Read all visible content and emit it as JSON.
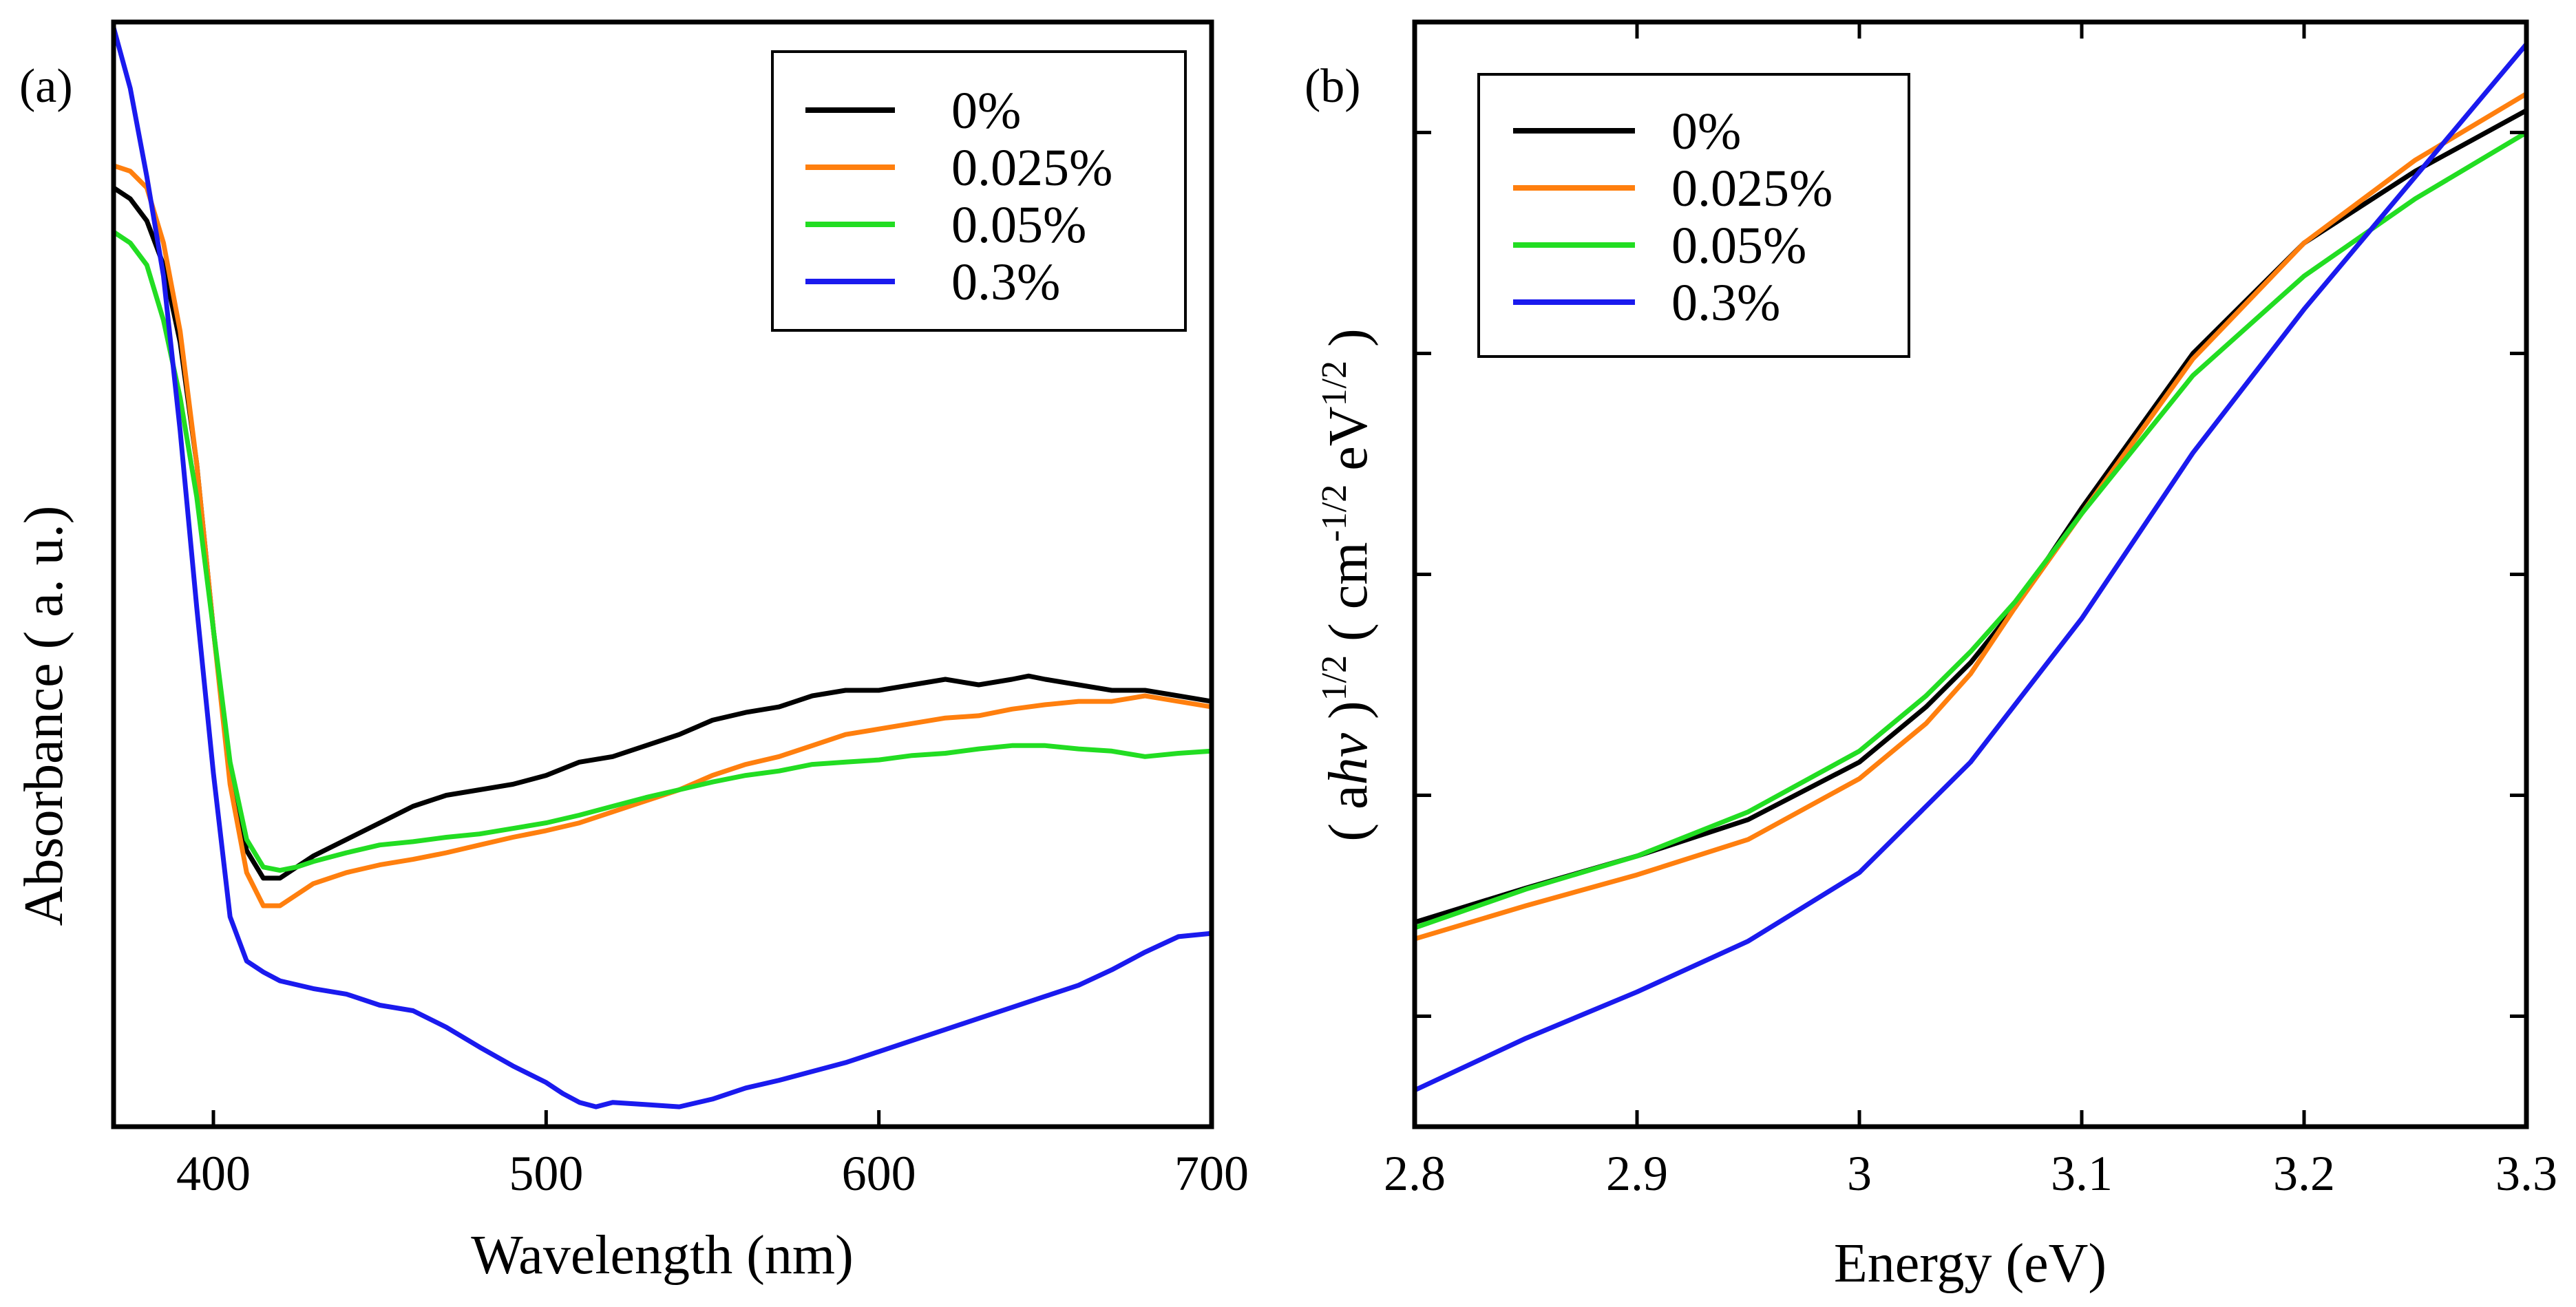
{
  "chart_data": [
    {
      "panel_label": "(a)",
      "type": "line",
      "title": "",
      "xlabel": "Wavelength  (nm)",
      "ylabel": "Absorbance  ( a. u.)",
      "xlim": [
        370,
        700
      ],
      "ylim": [
        0,
        1
      ],
      "x_ticks": [
        400,
        500,
        600,
        700
      ],
      "x_tick_labels": [
        "400",
        "500",
        "600",
        "700"
      ],
      "grid": false,
      "legend_position": "top-right",
      "series": [
        {
          "name": "0%",
          "color": "#000000",
          "x": [
            370,
            375,
            380,
            385,
            390,
            395,
            400,
            405,
            410,
            415,
            420,
            425,
            430,
            440,
            450,
            460,
            470,
            480,
            490,
            500,
            510,
            520,
            530,
            540,
            550,
            560,
            570,
            580,
            590,
            600,
            610,
            620,
            630,
            640,
            645,
            650,
            660,
            670,
            680,
            690,
            700
          ],
          "values": [
            0.85,
            0.84,
            0.82,
            0.78,
            0.71,
            0.6,
            0.45,
            0.32,
            0.25,
            0.225,
            0.225,
            0.235,
            0.245,
            0.26,
            0.275,
            0.29,
            0.3,
            0.305,
            0.31,
            0.318,
            0.33,
            0.335,
            0.345,
            0.355,
            0.368,
            0.375,
            0.38,
            0.39,
            0.395,
            0.395,
            0.4,
            0.405,
            0.4,
            0.405,
            0.408,
            0.405,
            0.4,
            0.395,
            0.395,
            0.39,
            0.385
          ]
        },
        {
          "name": "0.025%",
          "color": "#ff7f0e",
          "x": [
            370,
            375,
            380,
            385,
            390,
            395,
            400,
            405,
            410,
            415,
            420,
            425,
            430,
            440,
            450,
            460,
            470,
            480,
            490,
            500,
            510,
            520,
            530,
            540,
            550,
            560,
            570,
            580,
            590,
            600,
            610,
            620,
            630,
            640,
            650,
            660,
            670,
            680,
            690,
            700
          ],
          "values": [
            0.87,
            0.865,
            0.85,
            0.8,
            0.72,
            0.6,
            0.45,
            0.31,
            0.23,
            0.2,
            0.2,
            0.21,
            0.22,
            0.23,
            0.237,
            0.242,
            0.248,
            0.255,
            0.262,
            0.268,
            0.275,
            0.285,
            0.295,
            0.305,
            0.318,
            0.328,
            0.335,
            0.345,
            0.355,
            0.36,
            0.365,
            0.37,
            0.372,
            0.378,
            0.382,
            0.385,
            0.385,
            0.39,
            0.385,
            0.38
          ]
        },
        {
          "name": "0.05%",
          "color": "#22dd22",
          "x": [
            370,
            375,
            380,
            385,
            390,
            395,
            400,
            405,
            410,
            415,
            420,
            425,
            430,
            440,
            450,
            460,
            470,
            480,
            490,
            500,
            510,
            520,
            530,
            540,
            550,
            560,
            570,
            580,
            590,
            600,
            610,
            620,
            630,
            640,
            650,
            660,
            670,
            680,
            690,
            700
          ],
          "values": [
            0.81,
            0.8,
            0.78,
            0.73,
            0.66,
            0.57,
            0.45,
            0.33,
            0.26,
            0.235,
            0.232,
            0.235,
            0.24,
            0.248,
            0.255,
            0.258,
            0.262,
            0.265,
            0.27,
            0.275,
            0.282,
            0.29,
            0.298,
            0.305,
            0.312,
            0.318,
            0.322,
            0.328,
            0.33,
            0.332,
            0.336,
            0.338,
            0.342,
            0.345,
            0.345,
            0.342,
            0.34,
            0.335,
            0.338,
            0.34
          ]
        },
        {
          "name": "0.3%",
          "color": "#1a1aee",
          "x": [
            370,
            375,
            380,
            385,
            390,
            395,
            400,
            405,
            410,
            415,
            420,
            430,
            440,
            450,
            460,
            470,
            480,
            490,
            500,
            505,
            510,
            515,
            520,
            530,
            540,
            550,
            560,
            570,
            580,
            590,
            600,
            610,
            620,
            630,
            640,
            650,
            660,
            670,
            680,
            690,
            700
          ],
          "values": [
            0.995,
            0.94,
            0.86,
            0.77,
            0.63,
            0.47,
            0.32,
            0.19,
            0.15,
            0.14,
            0.132,
            0.125,
            0.12,
            0.11,
            0.105,
            0.09,
            0.072,
            0.055,
            0.04,
            0.03,
            0.022,
            0.018,
            0.022,
            0.02,
            0.018,
            0.025,
            0.035,
            0.042,
            0.05,
            0.058,
            0.068,
            0.078,
            0.088,
            0.098,
            0.108,
            0.118,
            0.128,
            0.142,
            0.158,
            0.172,
            0.175
          ]
        }
      ]
    },
    {
      "panel_label": "(b)",
      "type": "line",
      "title": "",
      "xlabel": "Energy (eV)",
      "ylabel": "( a",
      "ylabel_italic": "hv",
      "ylabel_rest": " )",
      "ylabel_sup1": "1/2",
      "ylabel_units": "  ( cm",
      "ylabel_sup2": "-1/2",
      "ylabel_units2": " eV",
      "ylabel_sup3": "1/2",
      "ylabel_end": " )",
      "xlim": [
        2.8,
        3.3
      ],
      "ylim": [
        0,
        1
      ],
      "x_ticks": [
        2.8,
        2.9,
        3.0,
        3.1,
        3.2,
        3.3
      ],
      "x_tick_labels": [
        "2.8",
        "2.9",
        "3",
        "3.1",
        "3.2",
        "3.3"
      ],
      "y_ticks": [
        0.1,
        0.3,
        0.5,
        0.7,
        0.9
      ],
      "grid": false,
      "legend_position": "top-left",
      "series": [
        {
          "name": "0%",
          "color": "#000000",
          "x": [
            2.8,
            2.85,
            2.9,
            2.95,
            3.0,
            3.03,
            3.05,
            3.07,
            3.1,
            3.15,
            3.2,
            3.25,
            3.3
          ],
          "values": [
            0.185,
            0.216,
            0.245,
            0.278,
            0.33,
            0.38,
            0.42,
            0.47,
            0.56,
            0.7,
            0.8,
            0.865,
            0.92
          ]
        },
        {
          "name": "0.025%",
          "color": "#ff7f0e",
          "x": [
            2.8,
            2.85,
            2.9,
            2.95,
            3.0,
            3.03,
            3.05,
            3.07,
            3.1,
            3.15,
            3.2,
            3.25,
            3.3
          ],
          "values": [
            0.17,
            0.2,
            0.228,
            0.26,
            0.315,
            0.365,
            0.41,
            0.47,
            0.555,
            0.695,
            0.8,
            0.875,
            0.935
          ]
        },
        {
          "name": "0.05%",
          "color": "#22dd22",
          "x": [
            2.8,
            2.85,
            2.9,
            2.95,
            3.0,
            3.03,
            3.05,
            3.07,
            3.1,
            3.15,
            3.2,
            3.25,
            3.3
          ],
          "values": [
            0.18,
            0.215,
            0.245,
            0.285,
            0.34,
            0.39,
            0.43,
            0.475,
            0.555,
            0.68,
            0.77,
            0.84,
            0.9
          ]
        },
        {
          "name": "0.3%",
          "color": "#1a1aee",
          "x": [
            2.8,
            2.85,
            2.9,
            2.95,
            3.0,
            3.05,
            3.1,
            3.15,
            3.2,
            3.25,
            3.3
          ],
          "values": [
            0.033,
            0.08,
            0.122,
            0.168,
            0.23,
            0.33,
            0.46,
            0.61,
            0.74,
            0.86,
            0.98
          ]
        }
      ]
    }
  ]
}
